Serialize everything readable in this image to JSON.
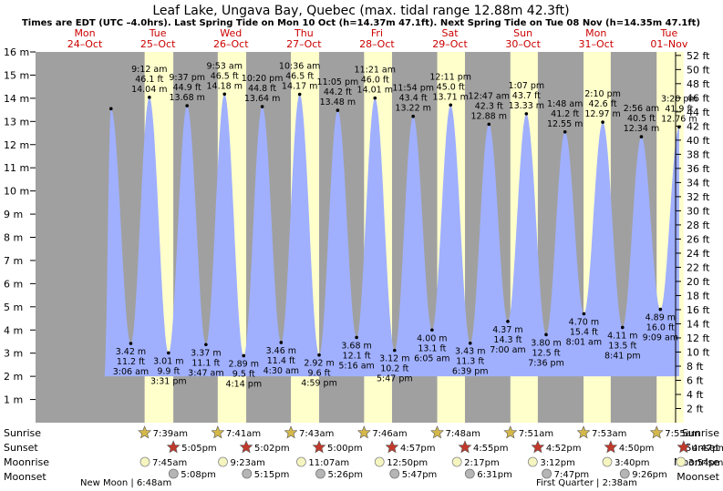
{
  "title": "Leaf Lake, Ungava Bay, Quebec (max. tidal range 12.88m 42.3ft)",
  "subtitle": "Times are EDT (UTC –4.0hrs). Last Spring Tide on Mon 10 Oct (h=14.37m 47.1ft). Next Spring Tide on Tue 08 Nov (h=14.35m 47.1ft)",
  "colors": {
    "water": "#a0b0ff",
    "night": "#a0a0a0",
    "day": "#ffffcc",
    "star": "#c0392b",
    "sunStar": "#d4b84a",
    "moonRise": "#f5f5c0",
    "moonSet": "#b5b5b5",
    "dayLabel": "#cc0000"
  },
  "days": [
    {
      "dow": "Mon",
      "date": "24–Oct"
    },
    {
      "dow": "Tue",
      "date": "25–Oct"
    },
    {
      "dow": "Wed",
      "date": "26–Oct"
    },
    {
      "dow": "Thu",
      "date": "27–Oct"
    },
    {
      "dow": "Fri",
      "date": "28–Oct"
    },
    {
      "dow": "Sat",
      "date": "29–Oct"
    },
    {
      "dow": "Sun",
      "date": "30–Oct"
    },
    {
      "dow": "Mon",
      "date": "31–Oct"
    },
    {
      "dow": "Tue",
      "date": "01–Nov"
    }
  ],
  "chart_data": {
    "type": "area",
    "title": "Leaf Lake, Ungava Bay, Quebec (max. tidal range 12.88m 42.3ft)",
    "ylabel_left": "m",
    "ylabel_right": "ft",
    "ylim_m": [
      0,
      16
    ],
    "ylim_ft": [
      2,
      52
    ],
    "yticks_m": [
      "1 m",
      "2 m",
      "3 m",
      "4 m",
      "5 m",
      "6 m",
      "7 m",
      "8 m",
      "9 m",
      "10 m",
      "11 m",
      "12 m",
      "13 m",
      "14 m",
      "15 m",
      "16 m"
    ],
    "yticks_ft": [
      "2 ft",
      "4 ft",
      "6 ft",
      "8 ft",
      "10 ft",
      "12 ft",
      "14 ft",
      "16 ft",
      "18 ft",
      "20 ft",
      "22 ft",
      "24 ft",
      "26 ft",
      "28 ft",
      "30 ft",
      "32 ft",
      "34 ft",
      "36 ft",
      "38 ft",
      "40 ft",
      "42 ft",
      "44 ft",
      "46 ft",
      "48 ft",
      "50 ft",
      "52 ft"
    ],
    "tides": [
      {
        "day": 0,
        "hour": 20.6,
        "m": 13.55,
        "type": "high",
        "labels": []
      },
      {
        "day": 1,
        "hour": 3.1,
        "m": 3.42,
        "type": "low",
        "labels": [
          "3.42 m",
          "11.2 ft",
          "3:06 am"
        ]
      },
      {
        "day": 1,
        "hour": 9.2,
        "m": 14.04,
        "type": "high",
        "labels": [
          "9:12 am",
          "46.1 ft",
          "14.04 m"
        ]
      },
      {
        "day": 1,
        "hour": 15.5,
        "m": 3.01,
        "type": "low",
        "labels": [
          "3.01 m",
          "9.9 ft",
          "3:31 pm"
        ]
      },
      {
        "day": 1,
        "hour": 21.6,
        "m": 13.68,
        "type": "high",
        "labels": [
          "9:37 pm",
          "44.9 ft",
          "13.68 m"
        ]
      },
      {
        "day": 2,
        "hour": 3.8,
        "m": 3.37,
        "type": "low",
        "labels": [
          "3.37 m",
          "11.1 ft",
          "3:47 am"
        ]
      },
      {
        "day": 2,
        "hour": 9.9,
        "m": 14.18,
        "type": "high",
        "labels": [
          "9:53 am",
          "46.5 ft",
          "14.18 m"
        ]
      },
      {
        "day": 2,
        "hour": 16.2,
        "m": 2.89,
        "type": "low",
        "labels": [
          "2.89 m",
          "9.5 ft",
          "4:14 pm"
        ]
      },
      {
        "day": 2,
        "hour": 22.3,
        "m": 13.64,
        "type": "high",
        "labels": [
          "10:20 pm",
          "44.8 ft",
          "13.64 m"
        ]
      },
      {
        "day": 3,
        "hour": 4.5,
        "m": 3.46,
        "type": "low",
        "labels": [
          "3.46 m",
          "11.4 ft",
          "4:30 am"
        ]
      },
      {
        "day": 3,
        "hour": 10.6,
        "m": 14.17,
        "type": "high",
        "labels": [
          "10:36 am",
          "46.5 ft",
          "14.17 m"
        ]
      },
      {
        "day": 3,
        "hour": 17.0,
        "m": 2.92,
        "type": "low",
        "labels": [
          "2.92 m",
          "9.6 ft",
          "4:59 pm"
        ]
      },
      {
        "day": 3,
        "hour": 23.1,
        "m": 13.48,
        "type": "high",
        "labels": [
          "11:05 pm",
          "44.2 ft",
          "13.48 m"
        ]
      },
      {
        "day": 4,
        "hour": 5.3,
        "m": 3.68,
        "type": "low",
        "labels": [
          "3.68 m",
          "12.1 ft",
          "5:16 am"
        ]
      },
      {
        "day": 4,
        "hour": 11.35,
        "m": 14.01,
        "type": "high",
        "labels": [
          "11:21 am",
          "46.0 ft",
          "14.01 m"
        ]
      },
      {
        "day": 4,
        "hour": 17.8,
        "m": 3.12,
        "type": "low",
        "labels": [
          "3.12 m",
          "10.2 ft",
          "5:47 pm"
        ]
      },
      {
        "day": 4,
        "hour": 23.9,
        "m": 13.22,
        "type": "high",
        "labels": [
          "11:54 pm",
          "43.4 ft",
          "13.22 m"
        ]
      },
      {
        "day": 5,
        "hour": 6.1,
        "m": 4.0,
        "type": "low",
        "labels": [
          "4.00 m",
          "13.1 ft",
          "6:05 am"
        ]
      },
      {
        "day": 5,
        "hour": 12.2,
        "m": 13.71,
        "type": "high",
        "labels": [
          "12:11 pm",
          "45.0 ft",
          "13.71 m"
        ]
      },
      {
        "day": 5,
        "hour": 18.65,
        "m": 3.43,
        "type": "low",
        "labels": [
          "3.43 m",
          "11.3 ft",
          "6:39 pm"
        ]
      },
      {
        "day": 6,
        "hour": 0.8,
        "m": 12.88,
        "type": "high",
        "labels": [
          "12:47 am",
          "42.3 ft",
          "12.88 m"
        ]
      },
      {
        "day": 6,
        "hour": 7.0,
        "m": 4.37,
        "type": "low",
        "labels": [
          "4.37 m",
          "14.3 ft",
          "7:00 am"
        ]
      },
      {
        "day": 6,
        "hour": 13.1,
        "m": 13.33,
        "type": "high",
        "labels": [
          "1:07 pm",
          "43.7 ft",
          "13.33 m"
        ]
      },
      {
        "day": 6,
        "hour": 19.6,
        "m": 3.8,
        "type": "low",
        "labels": [
          "3.80 m",
          "12.5 ft",
          "7:36 pm"
        ]
      },
      {
        "day": 7,
        "hour": 1.8,
        "m": 12.55,
        "type": "high",
        "labels": [
          "1:48 am",
          "41.2 ft",
          "12.55 m"
        ]
      },
      {
        "day": 7,
        "hour": 8.0,
        "m": 4.7,
        "type": "low",
        "labels": [
          "4.70 m",
          "15.4 ft",
          "8:01 am"
        ]
      },
      {
        "day": 7,
        "hour": 14.2,
        "m": 12.97,
        "type": "high",
        "labels": [
          "2:10 pm",
          "42.6 ft",
          "12.97 m"
        ]
      },
      {
        "day": 7,
        "hour": 20.7,
        "m": 4.11,
        "type": "low",
        "labels": [
          "4.11 m",
          "13.5 ft",
          "8:41 pm"
        ]
      },
      {
        "day": 8,
        "hour": 2.9,
        "m": 12.34,
        "type": "high",
        "labels": [
          "2:56 am",
          "40.5 ft",
          "12.34 m"
        ]
      },
      {
        "day": 8,
        "hour": 9.15,
        "m": 4.89,
        "type": "low",
        "labels": [
          "4.89 m",
          "16.0 ft",
          "9:09 am"
        ]
      },
      {
        "day": 8,
        "hour": 15.3,
        "m": 12.76,
        "type": "high",
        "labels": [
          "3:20 pm",
          "41.9 ft",
          "12.76 m"
        ]
      }
    ]
  },
  "rows": {
    "sunrise": "Sunrise",
    "sunset": "Sunset",
    "moonrise": "Moonrise",
    "moonset": "Moonset"
  },
  "events": {
    "sunrise": [
      "7:39am",
      "7:41am",
      "7:43am",
      "7:46am",
      "7:48am",
      "7:51am",
      "7:53am",
      "7:55am"
    ],
    "sunset": [
      "5:05pm",
      "5:02pm",
      "5:00pm",
      "4:57pm",
      "4:55pm",
      "4:52pm",
      "4:50pm",
      "4:47pm"
    ],
    "moonrise": [
      "7:45am",
      "9:23am",
      "11:07am",
      "12:50pm",
      "2:17pm",
      "3:12pm",
      "3:40pm",
      "3:54pm"
    ],
    "moonset": [
      "5:08pm",
      "5:15pm",
      "5:26pm",
      "5:47pm",
      "6:31pm",
      "7:47pm",
      "9:26pm"
    ]
  },
  "moon_phases": [
    "New Moon | 6:48am",
    "First Quarter | 2:38am"
  ]
}
